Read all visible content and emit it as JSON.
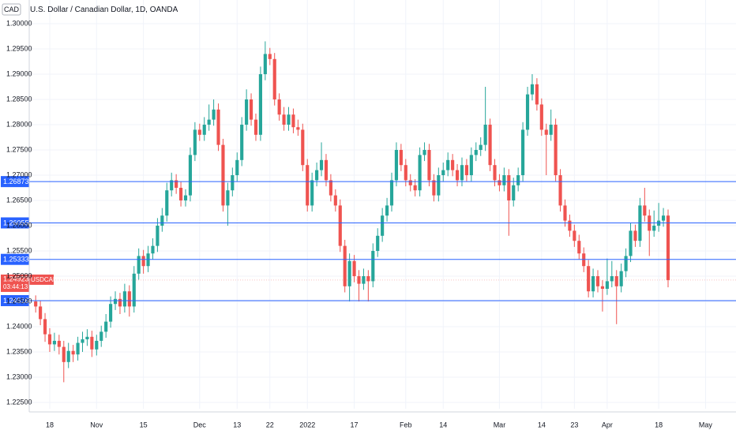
{
  "chart_data": {
    "type": "candlestick",
    "title": "U.S. Dollar / Canadian Dollar, 1D, OANDA",
    "currency": "CAD",
    "symbol": "USDCAD",
    "countdown": "03:44:13",
    "current_price": 1.24923,
    "up_color": "#26a69a",
    "down_color": "#ef5350",
    "line_color": "#2962ff",
    "grid": true,
    "horizontal_lines": [
      1.26873,
      1.26055,
      1.25333,
      1.24516
    ],
    "ylim": [
      1.22375,
      1.30469
    ],
    "yticks": [
      {
        "value": 1.225,
        "label": "1.22500"
      },
      {
        "value": 1.23,
        "label": "1.23000"
      },
      {
        "value": 1.235,
        "label": "1.23500"
      },
      {
        "value": 1.24,
        "label": "1.24000"
      },
      {
        "value": 1.245,
        "label": "1.24500"
      },
      {
        "value": 1.25,
        "label": "1.25000"
      },
      {
        "value": 1.255,
        "label": "1.25500"
      },
      {
        "value": 1.26,
        "label": "1.26000"
      },
      {
        "value": 1.265,
        "label": "1.26500"
      },
      {
        "value": 1.27,
        "label": "1.27000"
      },
      {
        "value": 1.275,
        "label": "1.27500"
      },
      {
        "value": 1.28,
        "label": "1.28000"
      },
      {
        "value": 1.285,
        "label": "1.28500"
      },
      {
        "value": 1.29,
        "label": "1.29000"
      },
      {
        "value": 1.295,
        "label": "1.29500"
      },
      {
        "value": 1.3,
        "label": "1.30000"
      }
    ],
    "xlim": [
      -1.38,
      149.5
    ],
    "xticks": [
      {
        "value": 3,
        "label": "18"
      },
      {
        "value": 13,
        "label": "Nov"
      },
      {
        "value": 23,
        "label": "15"
      },
      {
        "value": 35,
        "label": "Dec"
      },
      {
        "value": 43,
        "label": "13"
      },
      {
        "value": 50,
        "label": "22"
      },
      {
        "value": 58,
        "label": "2022"
      },
      {
        "value": 68,
        "label": "17"
      },
      {
        "value": 79,
        "label": "Feb"
      },
      {
        "value": 87,
        "label": "14"
      },
      {
        "value": 99,
        "label": "Mar"
      },
      {
        "value": 108,
        "label": "14"
      },
      {
        "value": 115,
        "label": "23"
      },
      {
        "value": 122,
        "label": "Apr"
      },
      {
        "value": 133,
        "label": "18"
      },
      {
        "value": 143,
        "label": "May"
      }
    ],
    "candles": [
      [
        1.245,
        1.2462,
        1.2428,
        1.244
      ],
      [
        1.244,
        1.2452,
        1.2403,
        1.2415
      ],
      [
        1.2415,
        1.2427,
        1.237,
        1.2385
      ],
      [
        1.2385,
        1.2397,
        1.235,
        1.2365
      ],
      [
        1.2365,
        1.2388,
        1.2352,
        1.2372
      ],
      [
        1.2372,
        1.2384,
        1.2345,
        1.236
      ],
      [
        1.236,
        1.2372,
        1.229,
        1.233
      ],
      [
        1.233,
        1.2368,
        1.2318,
        1.2352
      ],
      [
        1.2352,
        1.2364,
        1.233,
        1.2345
      ],
      [
        1.2345,
        1.238,
        1.2333,
        1.2368
      ],
      [
        1.2368,
        1.239,
        1.235,
        1.2375
      ],
      [
        1.2375,
        1.2395,
        1.2362,
        1.238
      ],
      [
        1.238,
        1.2392,
        1.234,
        1.2355
      ],
      [
        1.2355,
        1.2384,
        1.2343,
        1.2372
      ],
      [
        1.2372,
        1.2402,
        1.236,
        1.239
      ],
      [
        1.239,
        1.2425,
        1.2378,
        1.241
      ],
      [
        1.241,
        1.246,
        1.2398,
        1.2445
      ],
      [
        1.2445,
        1.247,
        1.2433,
        1.2455
      ],
      [
        1.2455,
        1.2467,
        1.2425,
        1.244
      ],
      [
        1.244,
        1.2485,
        1.2428,
        1.247
      ],
      [
        1.247,
        1.2482,
        1.242,
        1.244
      ],
      [
        1.244,
        1.252,
        1.2428,
        1.2505
      ],
      [
        1.2505,
        1.2555,
        1.2493,
        1.254
      ],
      [
        1.254,
        1.2552,
        1.2505,
        1.252
      ],
      [
        1.252,
        1.256,
        1.2508,
        1.2545
      ],
      [
        1.2545,
        1.2575,
        1.2533,
        1.256
      ],
      [
        1.256,
        1.2615,
        1.2548,
        1.26
      ],
      [
        1.26,
        1.2635,
        1.2588,
        1.262
      ],
      [
        1.262,
        1.2685,
        1.2608,
        1.267
      ],
      [
        1.267,
        1.2705,
        1.2658,
        1.269
      ],
      [
        1.269,
        1.2702,
        1.2663,
        1.2675
      ],
      [
        1.2675,
        1.2687,
        1.2638,
        1.265
      ],
      [
        1.265,
        1.2672,
        1.2638,
        1.266
      ],
      [
        1.266,
        1.2755,
        1.2648,
        1.274
      ],
      [
        1.274,
        1.2805,
        1.2728,
        1.279
      ],
      [
        1.279,
        1.2802,
        1.2768,
        1.278
      ],
      [
        1.278,
        1.2815,
        1.2768,
        1.28
      ],
      [
        1.28,
        1.284,
        1.2788,
        1.281
      ],
      [
        1.281,
        1.285,
        1.2798,
        1.283
      ],
      [
        1.283,
        1.2842,
        1.2748,
        1.276
      ],
      [
        1.276,
        1.2772,
        1.2628,
        1.264
      ],
      [
        1.264,
        1.2685,
        1.26,
        1.267
      ],
      [
        1.267,
        1.2715,
        1.2658,
        1.27
      ],
      [
        1.27,
        1.2745,
        1.2688,
        1.273
      ],
      [
        1.273,
        1.2815,
        1.2718,
        1.28
      ],
      [
        1.28,
        1.287,
        1.2788,
        1.285
      ],
      [
        1.285,
        1.2862,
        1.2798,
        1.281
      ],
      [
        1.281,
        1.2822,
        1.2768,
        1.278
      ],
      [
        1.278,
        1.2915,
        1.2768,
        1.29
      ],
      [
        1.29,
        1.2965,
        1.2888,
        1.294
      ],
      [
        1.294,
        1.2952,
        1.2918,
        1.293
      ],
      [
        1.293,
        1.2942,
        1.2838,
        1.285
      ],
      [
        1.285,
        1.2862,
        1.2808,
        1.282
      ],
      [
        1.282,
        1.2835,
        1.2788,
        1.28
      ],
      [
        1.28,
        1.2835,
        1.2788,
        1.282
      ],
      [
        1.282,
        1.2832,
        1.2783,
        1.2795
      ],
      [
        1.2795,
        1.281,
        1.2778,
        1.279
      ],
      [
        1.279,
        1.2802,
        1.2708,
        1.272
      ],
      [
        1.272,
        1.2732,
        1.2628,
        1.264
      ],
      [
        1.264,
        1.2705,
        1.2628,
        1.269
      ],
      [
        1.269,
        1.2725,
        1.2678,
        1.271
      ],
      [
        1.271,
        1.2765,
        1.2698,
        1.273
      ],
      [
        1.273,
        1.2742,
        1.2678,
        1.269
      ],
      [
        1.269,
        1.2702,
        1.2648,
        1.266
      ],
      [
        1.266,
        1.2672,
        1.2628,
        1.264
      ],
      [
        1.264,
        1.2652,
        1.2548,
        1.256
      ],
      [
        1.256,
        1.2572,
        1.2468,
        1.248
      ],
      [
        1.248,
        1.2545,
        1.245,
        1.253
      ],
      [
        1.253,
        1.2542,
        1.2488,
        1.25
      ],
      [
        1.25,
        1.2512,
        1.245,
        1.2485
      ],
      [
        1.2485,
        1.2515,
        1.2473,
        1.25
      ],
      [
        1.25,
        1.2512,
        1.245,
        1.249
      ],
      [
        1.249,
        1.2565,
        1.2478,
        1.255
      ],
      [
        1.255,
        1.2595,
        1.2538,
        1.258
      ],
      [
        1.258,
        1.2635,
        1.2568,
        1.262
      ],
      [
        1.262,
        1.2655,
        1.2608,
        1.264
      ],
      [
        1.264,
        1.2705,
        1.2628,
        1.269
      ],
      [
        1.269,
        1.2765,
        1.2678,
        1.275
      ],
      [
        1.275,
        1.2762,
        1.2708,
        1.272
      ],
      [
        1.272,
        1.2732,
        1.2678,
        1.269
      ],
      [
        1.269,
        1.2702,
        1.2668,
        1.268
      ],
      [
        1.268,
        1.2692,
        1.2658,
        1.267
      ],
      [
        1.267,
        1.2755,
        1.2658,
        1.274
      ],
      [
        1.274,
        1.2765,
        1.2728,
        1.275
      ],
      [
        1.275,
        1.2762,
        1.2678,
        1.269
      ],
      [
        1.269,
        1.2702,
        1.2648,
        1.266
      ],
      [
        1.266,
        1.2715,
        1.2648,
        1.27
      ],
      [
        1.27,
        1.2725,
        1.2688,
        1.271
      ],
      [
        1.271,
        1.2745,
        1.2698,
        1.273
      ],
      [
        1.273,
        1.2742,
        1.2698,
        1.271
      ],
      [
        1.271,
        1.2722,
        1.2678,
        1.269
      ],
      [
        1.269,
        1.2735,
        1.2678,
        1.272
      ],
      [
        1.272,
        1.2732,
        1.2688,
        1.27
      ],
      [
        1.27,
        1.2755,
        1.2688,
        1.274
      ],
      [
        1.274,
        1.2765,
        1.2728,
        1.275
      ],
      [
        1.275,
        1.2775,
        1.2738,
        1.276
      ],
      [
        1.276,
        1.2875,
        1.2748,
        1.28
      ],
      [
        1.28,
        1.2812,
        1.2708,
        1.272
      ],
      [
        1.272,
        1.2732,
        1.2678,
        1.269
      ],
      [
        1.269,
        1.2702,
        1.2668,
        1.268
      ],
      [
        1.268,
        1.2715,
        1.2668,
        1.27
      ],
      [
        1.27,
        1.2712,
        1.258,
        1.265
      ],
      [
        1.265,
        1.2695,
        1.2638,
        1.268
      ],
      [
        1.268,
        1.2715,
        1.2668,
        1.27
      ],
      [
        1.27,
        1.2805,
        1.2688,
        1.279
      ],
      [
        1.279,
        1.2875,
        1.2778,
        1.286
      ],
      [
        1.286,
        1.29,
        1.2848,
        1.288
      ],
      [
        1.288,
        1.2892,
        1.2828,
        1.284
      ],
      [
        1.284,
        1.2852,
        1.2778,
        1.279
      ],
      [
        1.279,
        1.2802,
        1.27,
        1.278
      ],
      [
        1.278,
        1.283,
        1.2768,
        1.28
      ],
      [
        1.28,
        1.2812,
        1.2688,
        1.27
      ],
      [
        1.27,
        1.2712,
        1.2628,
        1.264
      ],
      [
        1.264,
        1.2652,
        1.2598,
        1.261
      ],
      [
        1.261,
        1.2622,
        1.2578,
        1.259
      ],
      [
        1.259,
        1.2602,
        1.2558,
        1.257
      ],
      [
        1.257,
        1.2582,
        1.2533,
        1.2545
      ],
      [
        1.2545,
        1.2557,
        1.2508,
        1.252
      ],
      [
        1.252,
        1.2532,
        1.2458,
        1.247
      ],
      [
        1.247,
        1.2515,
        1.2458,
        1.25
      ],
      [
        1.25,
        1.2512,
        1.2468,
        1.248
      ],
      [
        1.248,
        1.2492,
        1.243,
        1.2475
      ],
      [
        1.2475,
        1.2535,
        1.2463,
        1.249
      ],
      [
        1.249,
        1.253,
        1.2478,
        1.25
      ],
      [
        1.25,
        1.2512,
        1.2405,
        1.248
      ],
      [
        1.248,
        1.2525,
        1.2468,
        1.251
      ],
      [
        1.251,
        1.2555,
        1.2498,
        1.254
      ],
      [
        1.254,
        1.2605,
        1.2528,
        1.259
      ],
      [
        1.259,
        1.2602,
        1.2558,
        1.257
      ],
      [
        1.257,
        1.2655,
        1.2558,
        1.264
      ],
      [
        1.264,
        1.2675,
        1.2608,
        1.262
      ],
      [
        1.262,
        1.2632,
        1.254,
        1.259
      ],
      [
        1.259,
        1.263,
        1.2578,
        1.26
      ],
      [
        1.26,
        1.2645,
        1.2588,
        1.261
      ],
      [
        1.261,
        1.2635,
        1.2598,
        1.262
      ],
      [
        1.262,
        1.2632,
        1.2478,
        1.24923
      ]
    ]
  }
}
